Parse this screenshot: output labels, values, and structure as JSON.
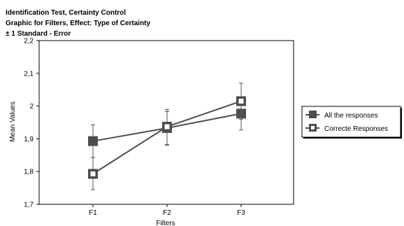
{
  "chart_data": {
    "type": "line",
    "title_lines": [
      "Identification Test, Certainty Control",
      "Graphic for Filters, Effect: Type of Certainty",
      "± 1 Standard - Error"
    ],
    "xlabel": "Filters",
    "ylabel": "Mean Values",
    "categories": [
      "F1",
      "F2",
      "F3"
    ],
    "ylim": [
      1.7,
      2.2
    ],
    "yticks": [
      "1,7",
      "1,8",
      "1,9",
      "2",
      "2,1",
      "2,2"
    ],
    "ytick_values": [
      1.7,
      1.8,
      1.9,
      2.0,
      2.1,
      2.2
    ],
    "grid": false,
    "legend_position": "right",
    "series": [
      {
        "name": "All the responses",
        "marker": "filled-square",
        "color": "#4d4d4d",
        "values": [
          1.893,
          1.933,
          1.977
        ],
        "err_low": [
          1.843,
          1.883,
          1.927
        ],
        "err_high": [
          1.943,
          1.983,
          2.027
        ]
      },
      {
        "name": "Correcte Responses",
        "marker": "hollow-square",
        "color": "#4d4d4d",
        "values": [
          1.793,
          1.937,
          2.015
        ],
        "err_low": [
          1.745,
          1.88,
          1.96
        ],
        "err_high": [
          1.843,
          1.99,
          2.07
        ]
      }
    ]
  }
}
